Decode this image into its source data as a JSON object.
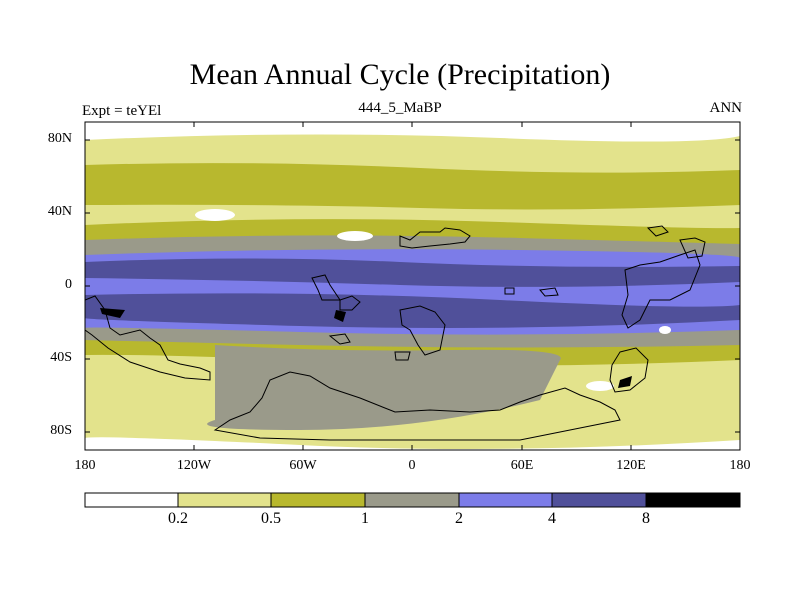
{
  "title": "Mean Annual Cycle (Precipitation)",
  "left_label": "Expt = teYEl",
  "center_label": "444_5_MaBP",
  "right_label": "ANN",
  "y_ticks": [
    "80N",
    "40N",
    "0",
    "40S",
    "80S"
  ],
  "x_ticks": [
    "180",
    "120W",
    "60W",
    "0",
    "60E",
    "120E",
    "180"
  ],
  "colorbar": {
    "labels": [
      "0.2",
      "0.5",
      "1",
      "2",
      "4",
      "8"
    ],
    "colors": [
      "#ffffff",
      "#e3e38c",
      "#b8b82e",
      "#9a9a8a",
      "#7c7ce8",
      "#50509a",
      "#000000"
    ]
  }
}
